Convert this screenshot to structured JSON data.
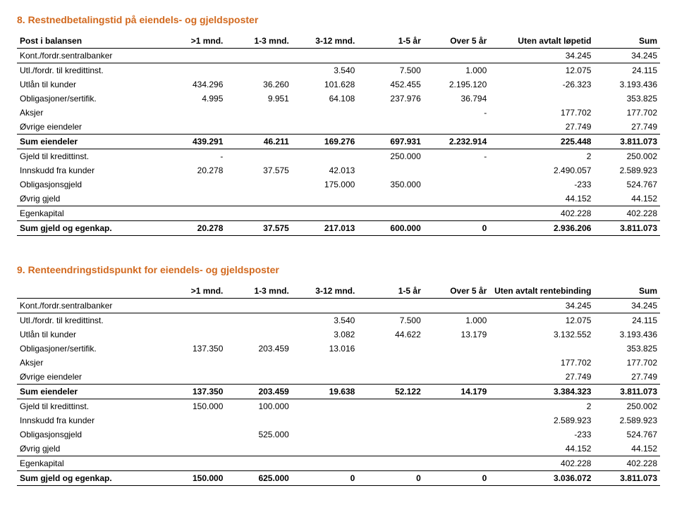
{
  "section8": {
    "title": "8. Restnedbetalingstid på eiendels- og gjeldsposter",
    "title_color": "#d2691e",
    "headers": [
      "Post i balansen",
      ">1 mnd.",
      "1-3 mnd.",
      "3-12 mnd.",
      "1-5 år",
      "Over 5 år",
      "Uten avtalt løpetid",
      "Sum"
    ],
    "rows": [
      {
        "label": "Kont./fordr.sentralbanker",
        "c": [
          "",
          "",
          "",
          "",
          "",
          "34.245",
          "34.245"
        ],
        "line": true
      },
      {
        "label": "Utl./fordr. til kredittinst.",
        "c": [
          "",
          "",
          "3.540",
          "7.500",
          "1.000",
          "12.075",
          "24.115"
        ]
      },
      {
        "label": "Utlån til kunder",
        "c": [
          "434.296",
          "36.260",
          "101.628",
          "452.455",
          "2.195.120",
          "-26.323",
          "3.193.436"
        ]
      },
      {
        "label": "Obligasjoner/sertifik.",
        "c": [
          "4.995",
          "9.951",
          "64.108",
          "237.976",
          "36.794",
          "",
          "353.825"
        ]
      },
      {
        "label": "Aksjer",
        "c": [
          "",
          "",
          "",
          "",
          "-",
          "177.702",
          "177.702"
        ]
      },
      {
        "label": "Øvrige eiendeler",
        "c": [
          "",
          "",
          "",
          "",
          "",
          "27.749",
          "27.749"
        ],
        "line": true
      },
      {
        "label": "Sum eiendeler",
        "c": [
          "439.291",
          "46.211",
          "169.276",
          "697.931",
          "2.232.914",
          "225.448",
          "3.811.073"
        ],
        "bold": true,
        "line": true
      },
      {
        "label": "Gjeld til kredittinst.",
        "c": [
          "-",
          "",
          "",
          "250.000",
          "-",
          "2",
          "250.002"
        ]
      },
      {
        "label": "Innskudd fra kunder",
        "c": [
          "20.278",
          "37.575",
          "42.013",
          "",
          "",
          "2.490.057",
          "2.589.923"
        ]
      },
      {
        "label": "Obligasjonsgjeld",
        "c": [
          "",
          "",
          "175.000",
          "350.000",
          "",
          "-233",
          "524.767"
        ]
      },
      {
        "label": "Øvrig gjeld",
        "c": [
          "",
          "",
          "",
          "",
          "",
          "44.152",
          "44.152"
        ],
        "line": true
      },
      {
        "label": "Egenkapital",
        "c": [
          "",
          "",
          "",
          "",
          "",
          "402.228",
          "402.228"
        ],
        "line": true
      },
      {
        "label": "Sum gjeld og egenkap.",
        "c": [
          "20.278",
          "37.575",
          "217.013",
          "600.000",
          "0",
          "2.936.206",
          "3.811.073"
        ],
        "bold": true,
        "line": true
      }
    ]
  },
  "section9": {
    "title": "9. Renteendringstidspunkt  for eiendels- og gjeldsposter",
    "title_color": "#d2691e",
    "headers": [
      "",
      ">1 mnd.",
      "1-3 mnd.",
      "3-12 mnd.",
      "1-5 år",
      "Over 5 år",
      "Uten avtalt rentebinding",
      "Sum"
    ],
    "rows": [
      {
        "label": "Kont./fordr.sentralbanker",
        "c": [
          "",
          "",
          "",
          "",
          "",
          "34.245",
          "34.245"
        ],
        "line": true
      },
      {
        "label": "Utl./fordr. til kredittinst.",
        "c": [
          "",
          "",
          "3.540",
          "7.500",
          "1.000",
          "12.075",
          "24.115"
        ]
      },
      {
        "label": "Utlån til kunder",
        "c": [
          "",
          "",
          "3.082",
          "44.622",
          "13.179",
          "3.132.552",
          "3.193.436"
        ]
      },
      {
        "label": "Obligasjoner/sertifik.",
        "c": [
          "137.350",
          "203.459",
          "13.016",
          "",
          "",
          "",
          "353.825"
        ]
      },
      {
        "label": "Aksjer",
        "c": [
          "",
          "",
          "",
          "",
          "",
          "177.702",
          "177.702"
        ]
      },
      {
        "label": "Øvrige eiendeler",
        "c": [
          "",
          "",
          "",
          "",
          "",
          "27.749",
          "27.749"
        ],
        "line": true
      },
      {
        "label": "Sum eiendeler",
        "c": [
          "137.350",
          "203.459",
          "19.638",
          "52.122",
          "14.179",
          "3.384.323",
          "3.811.073"
        ],
        "bold": true,
        "line": true
      },
      {
        "label": "Gjeld til kredittinst.",
        "c": [
          "150.000",
          "100.000",
          "",
          "",
          "",
          "2",
          "250.002"
        ]
      },
      {
        "label": "Innskudd fra kunder",
        "c": [
          "",
          "",
          "",
          "",
          "",
          "2.589.923",
          "2.589.923"
        ]
      },
      {
        "label": "Obligasjonsgjeld",
        "c": [
          "",
          "525.000",
          "",
          "",
          "",
          "-233",
          "524.767"
        ]
      },
      {
        "label": "Øvrig gjeld",
        "c": [
          "",
          "",
          "",
          "",
          "",
          "44.152",
          "44.152"
        ],
        "line": true
      },
      {
        "label": "Egenkapital",
        "c": [
          "",
          "",
          "",
          "",
          "",
          "402.228",
          "402.228"
        ],
        "line": true
      },
      {
        "label": "Sum gjeld og egenkap.",
        "c": [
          "150.000",
          "625.000",
          "0",
          "0",
          "0",
          "3.036.072",
          "3.811.073"
        ],
        "bold": true,
        "line": true
      }
    ]
  }
}
